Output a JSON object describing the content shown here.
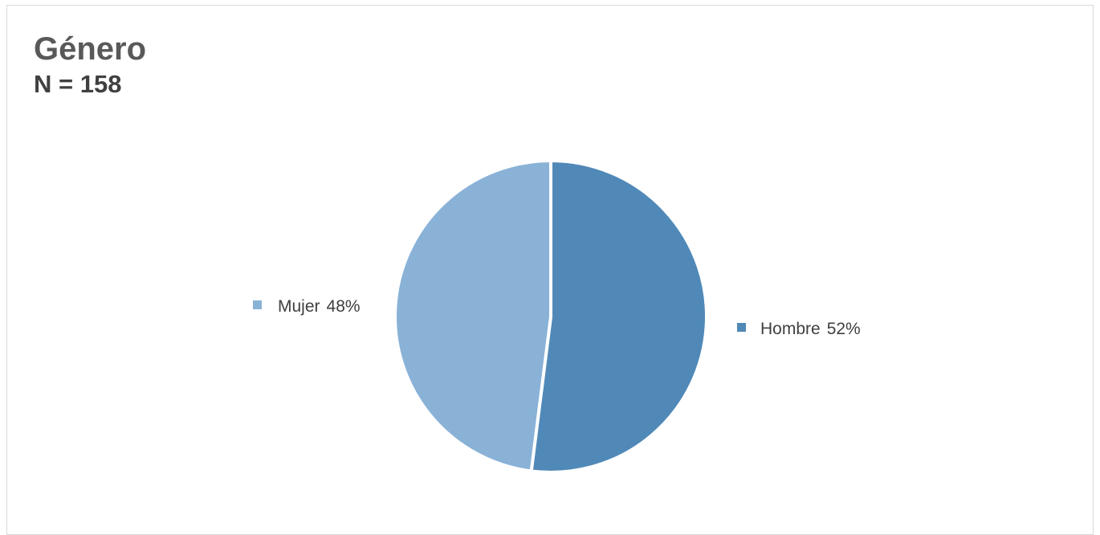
{
  "chart_data": {
    "type": "pie",
    "title": "Género",
    "subtitle": "N = 158",
    "slices": [
      {
        "label": "Hombre",
        "percent": 52,
        "display": "52%",
        "color": "#5089b8"
      },
      {
        "label": "Mujer",
        "percent": 48,
        "display": "48%",
        "color": "#8ab2d7"
      }
    ],
    "start_angle_deg": 0,
    "direction": "clockwise",
    "slice_border_color": "#ffffff"
  }
}
